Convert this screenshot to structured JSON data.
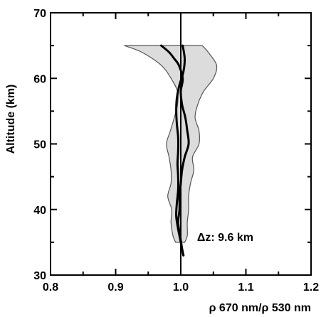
{
  "chart_data": {
    "type": "line",
    "title": "",
    "xlabel": "ρ 670 nm/ρ 530 nm",
    "ylabel": "Altitude (km)",
    "xlim": [
      0.8,
      1.2
    ],
    "ylim": [
      30,
      70
    ],
    "x_ticks": [
      0.8,
      0.9,
      1.0,
      1.1,
      1.2
    ],
    "x_tick_labels": [
      "0.8",
      "0.9",
      "1.0",
      "1.1",
      "1.2"
    ],
    "y_ticks": [
      30,
      40,
      50,
      60,
      70
    ],
    "y_tick_labels": [
      "30",
      "40",
      "50",
      "60",
      "70"
    ],
    "reference_line_x": 1.0,
    "annotation": "Δz: 9.6 km",
    "series": [
      {
        "kind": "band",
        "lower": [
          {
            "y": 65,
            "x": 0.913
          },
          {
            "y": 64,
            "x": 0.94
          },
          {
            "y": 62,
            "x": 0.97
          },
          {
            "y": 60,
            "x": 0.985
          },
          {
            "y": 58,
            "x": 0.995
          },
          {
            "y": 56,
            "x": 0.995
          },
          {
            "y": 54,
            "x": 0.99
          },
          {
            "y": 52,
            "x": 0.984
          },
          {
            "y": 50,
            "x": 0.978
          },
          {
            "y": 48,
            "x": 0.982
          },
          {
            "y": 46,
            "x": 0.985
          },
          {
            "y": 44,
            "x": 0.985
          },
          {
            "y": 42,
            "x": 0.98
          },
          {
            "y": 40,
            "x": 0.986
          },
          {
            "y": 38,
            "x": 0.985
          },
          {
            "y": 36,
            "x": 0.988
          },
          {
            "y": 35,
            "x": 0.992
          }
        ],
        "upper": [
          {
            "y": 65,
            "x": 1.033
          },
          {
            "y": 64,
            "x": 1.042
          },
          {
            "y": 62,
            "x": 1.055
          },
          {
            "y": 60,
            "x": 1.05
          },
          {
            "y": 58,
            "x": 1.035
          },
          {
            "y": 56,
            "x": 1.026
          },
          {
            "y": 54,
            "x": 1.022
          },
          {
            "y": 52,
            "x": 1.028
          },
          {
            "y": 50,
            "x": 1.028
          },
          {
            "y": 48,
            "x": 1.018
          },
          {
            "y": 46,
            "x": 1.02
          },
          {
            "y": 44,
            "x": 1.015
          },
          {
            "y": 42,
            "x": 1.012
          },
          {
            "y": 40,
            "x": 1.012
          },
          {
            "y": 38,
            "x": 1.01
          },
          {
            "y": 36,
            "x": 1.01
          },
          {
            "y": 35,
            "x": 1.006
          }
        ]
      },
      {
        "kind": "line",
        "points": [
          {
            "y": 65,
            "x": 0.97
          },
          {
            "y": 64,
            "x": 0.982
          },
          {
            "y": 63,
            "x": 0.99
          },
          {
            "y": 62,
            "x": 0.997
          },
          {
            "y": 60,
            "x": 1.003
          },
          {
            "y": 58,
            "x": 1.0
          },
          {
            "y": 56,
            "x": 1.002
          },
          {
            "y": 54,
            "x": 1.007
          },
          {
            "y": 52,
            "x": 1.01
          },
          {
            "y": 50,
            "x": 1.012
          },
          {
            "y": 48,
            "x": 1.006
          },
          {
            "y": 46,
            "x": 1.002
          },
          {
            "y": 44,
            "x": 1.0
          },
          {
            "y": 42,
            "x": 0.998
          },
          {
            "y": 40,
            "x": 0.998
          },
          {
            "y": 38,
            "x": 0.996
          },
          {
            "y": 36,
            "x": 0.999
          },
          {
            "y": 34,
            "x": 1.002
          },
          {
            "y": 33,
            "x": 1.004
          }
        ]
      },
      {
        "kind": "line",
        "points": [
          {
            "y": 65,
            "x": 1.003
          },
          {
            "y": 63,
            "x": 1.006
          },
          {
            "y": 61,
            "x": 1.004
          },
          {
            "y": 59,
            "x": 0.998
          },
          {
            "y": 57,
            "x": 0.994
          },
          {
            "y": 55,
            "x": 0.993
          },
          {
            "y": 53,
            "x": 0.994
          },
          {
            "y": 51,
            "x": 0.996
          },
          {
            "y": 49,
            "x": 0.996
          },
          {
            "y": 47,
            "x": 0.995
          },
          {
            "y": 45,
            "x": 0.996
          },
          {
            "y": 43,
            "x": 0.996
          },
          {
            "y": 41,
            "x": 0.994
          },
          {
            "y": 39,
            "x": 0.993
          },
          {
            "y": 37,
            "x": 0.996
          },
          {
            "y": 35,
            "x": 1.0
          },
          {
            "y": 33,
            "x": 1.004
          }
        ]
      }
    ]
  }
}
